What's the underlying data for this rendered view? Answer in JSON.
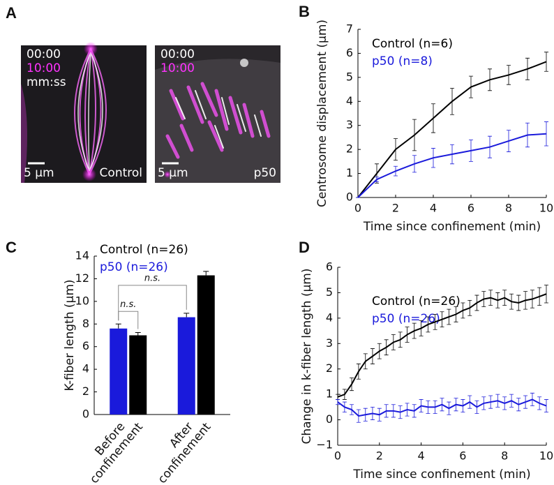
{
  "panel_labels": [
    "A",
    "B",
    "C",
    "D"
  ],
  "images": [
    {
      "times": [
        "00:00",
        "10:00"
      ],
      "time_format": "mm:ss",
      "scale_bar": "5 μm",
      "label": "Control"
    },
    {
      "times": [
        "00:00",
        "10:00"
      ],
      "scale_bar": "5 μm",
      "label": "p50"
    }
  ],
  "chart_data": [
    {
      "type": "line",
      "xlabel": "Time since confinement (min)",
      "ylabel": "Centrosome displacement (μm)",
      "x": [
        0,
        1,
        2,
        3,
        4,
        5,
        6,
        7,
        8,
        9,
        10
      ],
      "series": [
        {
          "name": "Control (n=6)",
          "color": "#000000",
          "values": [
            0,
            1.0,
            2.0,
            2.6,
            3.3,
            4.0,
            4.6,
            4.9,
            5.1,
            5.35,
            5.65
          ],
          "errors": [
            0,
            0.4,
            0.45,
            0.65,
            0.6,
            0.55,
            0.45,
            0.45,
            0.4,
            0.45,
            0.4
          ]
        },
        {
          "name": "p50 (n=8)",
          "color": "#1a1adb",
          "values": [
            0,
            0.75,
            1.1,
            1.4,
            1.65,
            1.8,
            1.95,
            2.1,
            2.35,
            2.6,
            2.65
          ],
          "errors": [
            0,
            0.1,
            0.2,
            0.35,
            0.4,
            0.4,
            0.45,
            0.45,
            0.45,
            0.5,
            0.5
          ]
        }
      ],
      "xlim": [
        0,
        10
      ],
      "xticks": [
        0,
        2,
        4,
        6,
        8,
        10
      ],
      "ylim": [
        0,
        7
      ],
      "yticks": [
        0,
        1,
        2,
        3,
        4,
        5,
        6,
        7
      ]
    },
    {
      "type": "bar",
      "ylabel": "K-fiber length (μm)",
      "categories": [
        "Before confinement",
        "After confinement"
      ],
      "series": [
        {
          "name": "p50 (n=26)",
          "color": "#1a1adb",
          "values": [
            7.6,
            8.6
          ],
          "errors": [
            0.4,
            0.35
          ]
        },
        {
          "name": "Control (n=26)",
          "color": "#000000",
          "values": [
            7.0,
            12.3
          ],
          "errors": [
            0.25,
            0.35
          ]
        }
      ],
      "annotations": [
        "n.s.",
        "n.s."
      ],
      "ylim": [
        0,
        14
      ],
      "yticks": [
        0,
        2,
        4,
        6,
        8,
        10,
        12,
        14
      ]
    },
    {
      "type": "line",
      "xlabel": "Time since confinement (min)",
      "ylabel": "Change in k-fiber length (μm)",
      "x": [
        0,
        0.33,
        0.67,
        1,
        1.33,
        1.67,
        2,
        2.33,
        2.67,
        3,
        3.33,
        3.67,
        4,
        4.33,
        4.67,
        5,
        5.33,
        5.67,
        6,
        6.33,
        6.67,
        7,
        7.33,
        7.67,
        8,
        8.33,
        8.67,
        9,
        9.33,
        9.67,
        10
      ],
      "series": [
        {
          "name": "Control (n=26)",
          "color": "#000000",
          "values": [
            0.9,
            1.0,
            1.4,
            1.9,
            2.3,
            2.5,
            2.7,
            2.85,
            3.05,
            3.15,
            3.35,
            3.5,
            3.6,
            3.75,
            3.85,
            3.95,
            4.05,
            4.15,
            4.3,
            4.4,
            4.6,
            4.75,
            4.8,
            4.7,
            4.8,
            4.65,
            4.6,
            4.7,
            4.75,
            4.85,
            4.95
          ],
          "errors": [
            0.1,
            0.2,
            0.25,
            0.3,
            0.3,
            0.3,
            0.3,
            0.3,
            0.3,
            0.3,
            0.3,
            0.3,
            0.3,
            0.3,
            0.3,
            0.3,
            0.3,
            0.3,
            0.3,
            0.3,
            0.3,
            0.3,
            0.3,
            0.3,
            0.3,
            0.3,
            0.3,
            0.35,
            0.35,
            0.35,
            0.35
          ]
        },
        {
          "name": "p50 (n=26)",
          "color": "#1a1adb",
          "values": [
            0.7,
            0.5,
            0.4,
            0.15,
            0.2,
            0.25,
            0.2,
            0.35,
            0.35,
            0.3,
            0.4,
            0.35,
            0.55,
            0.5,
            0.5,
            0.6,
            0.45,
            0.6,
            0.55,
            0.7,
            0.5,
            0.65,
            0.7,
            0.75,
            0.65,
            0.75,
            0.6,
            0.7,
            0.8,
            0.65,
            0.55
          ],
          "errors": [
            0.1,
            0.2,
            0.2,
            0.25,
            0.25,
            0.25,
            0.25,
            0.25,
            0.25,
            0.25,
            0.25,
            0.25,
            0.25,
            0.25,
            0.25,
            0.25,
            0.25,
            0.25,
            0.25,
            0.25,
            0.25,
            0.25,
            0.25,
            0.25,
            0.25,
            0.25,
            0.25,
            0.25,
            0.25,
            0.25,
            0.25
          ]
        }
      ],
      "xlim": [
        0,
        10
      ],
      "xticks": [
        0,
        2,
        4,
        6,
        8,
        10
      ],
      "ylim": [
        -1,
        6
      ],
      "yticks": [
        {
          "value": -1,
          "label": "−1"
        },
        0,
        1,
        2,
        3,
        4,
        5,
        6
      ]
    }
  ]
}
